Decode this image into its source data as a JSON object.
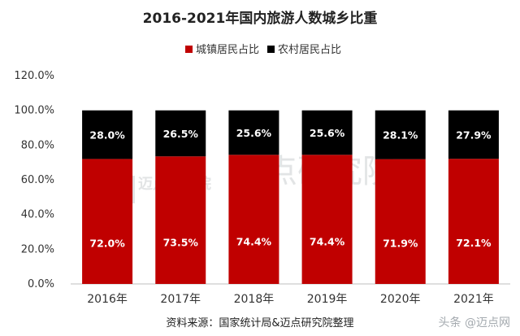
{
  "chart_data": {
    "type": "bar",
    "stacked": true,
    "percent_axis": true,
    "title": "2016-2021年国内旅游人数城乡比重",
    "categories": [
      "2016年",
      "2017年",
      "2018年",
      "2019年",
      "2020年",
      "2021年"
    ],
    "series": [
      {
        "name": "城镇居民占比",
        "color": "#c00000",
        "values": [
          72.0,
          73.5,
          74.4,
          74.4,
          71.9,
          72.1
        ],
        "labels": [
          "72.0%",
          "73.5%",
          "74.4%",
          "74.4%",
          "71.9%",
          "72.1%"
        ]
      },
      {
        "name": "农村居民占比",
        "color": "#000000",
        "values": [
          28.0,
          26.5,
          25.6,
          25.6,
          28.1,
          27.9
        ],
        "labels": [
          "28.0%",
          "26.5%",
          "25.6%",
          "25.6%",
          "28.1%",
          "27.9%"
        ]
      }
    ],
    "ylim": [
      0,
      120
    ],
    "yticks": [
      "0.0%",
      "20.0%",
      "40.0%",
      "60.0%",
      "80.0%",
      "100.0%",
      "120.0%"
    ],
    "grid": false,
    "legend_position": "top-center",
    "source": "资料来源：国家统计局&迈点研究院整理"
  },
  "watermark": {
    "center_text": "迈点研究院",
    "logo_text": "迈点研究院",
    "corner_text": "头条 @迈点网"
  }
}
